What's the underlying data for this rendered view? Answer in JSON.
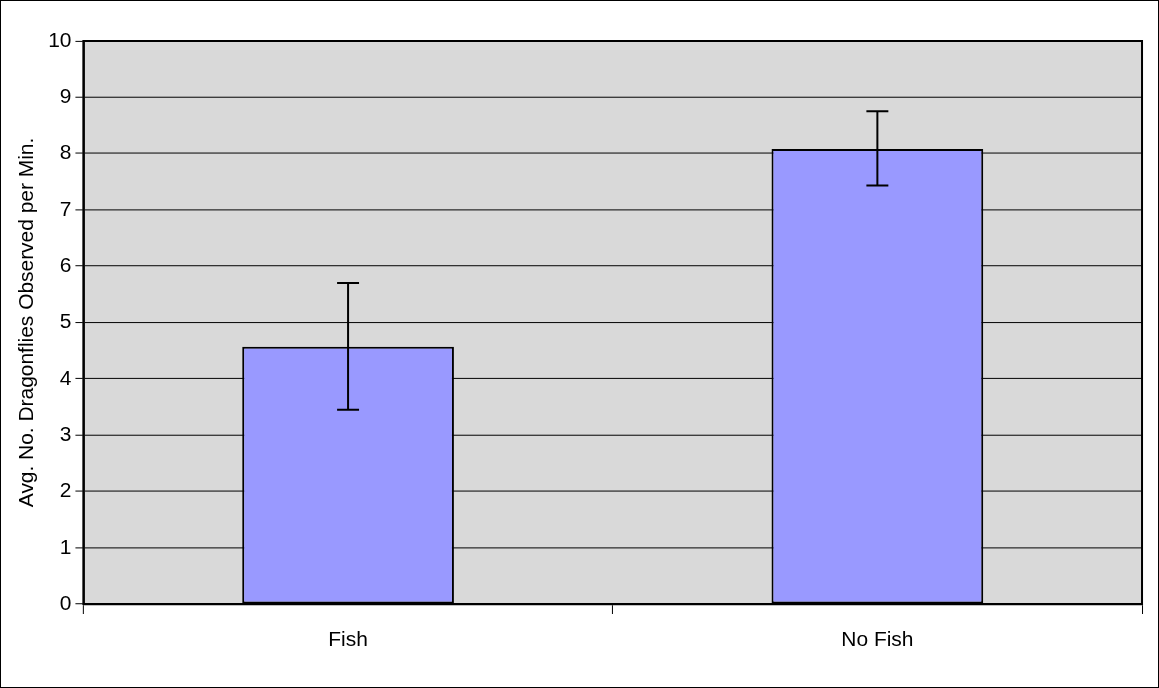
{
  "chart_data": {
    "type": "bar",
    "ylabel": "Avg. No. Dragonflies Observed per Min.",
    "categories": [
      "Fish",
      "No Fish"
    ],
    "values": [
      4.57,
      8.08
    ],
    "errors": [
      [
        3.45,
        5.7
      ],
      [
        7.43,
        8.75
      ]
    ],
    "color": "#9999ff",
    "ylim": [
      0,
      10
    ],
    "yticks": [
      0,
      1,
      2,
      3,
      4,
      5,
      6,
      7,
      8,
      9,
      10
    ],
    "grid": "y",
    "legend": false
  }
}
